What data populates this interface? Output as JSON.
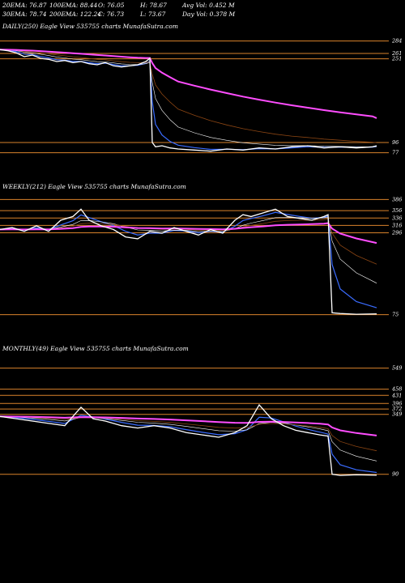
{
  "header": {
    "ema20": "20EMA: 76.87",
    "ema100": "100EMA: 88.44",
    "open": "O: 76.05",
    "high": "H: 78.67",
    "avgvol": "Avg Vol: 0.452  M",
    "ema30": "30EMA: 78.74",
    "ema200": "200EMA: 122.24",
    "close": "C: 76.73",
    "low": "L: 73.67",
    "dayvol": "Day Vol: 0.378  M"
  },
  "colors": {
    "background": "#000000",
    "price": "#ffffff",
    "ema_short": "#3a6cff",
    "ema_long": "#ff4dff",
    "level_lines": "#d9822b",
    "ema_mid": "#8b4513"
  },
  "chart_data": [
    {
      "type": "line",
      "title": "DAILY(250) Eagle   View  535755 charts MunafaSutra.com",
      "x": [
        0,
        10,
        20,
        30,
        40,
        50,
        60,
        70,
        80,
        90,
        100,
        110,
        120,
        130,
        140,
        150,
        160,
        170,
        180,
        185,
        188,
        192,
        200,
        210,
        220,
        240,
        260,
        280,
        300,
        320,
        340,
        360,
        380,
        400,
        420,
        440,
        460,
        465
      ],
      "series": [
        {
          "name": "price",
          "values": [
            268,
            266,
            262,
            255,
            258,
            252,
            250,
            246,
            248,
            244,
            246,
            242,
            240,
            244,
            238,
            236,
            238,
            240,
            246,
            252,
            96,
            88,
            90,
            86,
            84,
            82,
            80,
            84,
            82,
            86,
            84,
            88,
            90,
            86,
            88,
            86,
            88,
            90
          ]
        }
      ],
      "levels": [
        284,
        261,
        251,
        96,
        77
      ],
      "level_labels": [
        "284",
        "261",
        "251",
        "96",
        "77"
      ],
      "ylim": [
        60,
        300
      ]
    },
    {
      "type": "line",
      "title": "WEEKLY(212) Eagle   View  535755 charts MunafaSutra.com",
      "x": [
        0,
        15,
        30,
        45,
        60,
        75,
        90,
        100,
        110,
        125,
        140,
        155,
        170,
        185,
        200,
        215,
        230,
        245,
        260,
        275,
        290,
        300,
        310,
        325,
        340,
        355,
        370,
        385,
        400,
        405,
        410,
        420,
        440,
        465
      ],
      "series": [
        {
          "name": "price",
          "values": [
            305,
            310,
            300,
            315,
            300,
            330,
            340,
            360,
            330,
            315,
            305,
            285,
            280,
            300,
            295,
            310,
            300,
            290,
            305,
            295,
            330,
            345,
            340,
            350,
            360,
            340,
            335,
            330,
            340,
            345,
            80,
            78,
            76,
            77
          ]
        }
      ],
      "levels": [
        386,
        356,
        336,
        316,
        296,
        75
      ],
      "level_labels": [
        "386",
        "356",
        "336",
        "316",
        "296",
        "75"
      ],
      "ylim": [
        50,
        400
      ]
    },
    {
      "type": "line",
      "title": "MONTHLY(49) Eagle   View  535755 charts MunafaSutra.com",
      "x": [
        0,
        20,
        40,
        60,
        80,
        100,
        115,
        130,
        150,
        170,
        190,
        210,
        230,
        250,
        270,
        290,
        305,
        320,
        335,
        350,
        365,
        380,
        395,
        405,
        410,
        420,
        440,
        465
      ],
      "series": [
        {
          "name": "price",
          "values": [
            340,
            330,
            320,
            310,
            300,
            380,
            330,
            320,
            300,
            290,
            300,
            290,
            270,
            260,
            250,
            270,
            300,
            390,
            330,
            300,
            280,
            270,
            260,
            255,
            90,
            85,
            88,
            86
          ]
        }
      ],
      "levels": [
        549,
        458,
        431,
        396,
        372,
        349,
        90
      ],
      "level_labels": [
        "549",
        "458",
        "431",
        "396",
        "372",
        "349",
        "90"
      ],
      "ylim": [
        40,
        600
      ]
    }
  ]
}
